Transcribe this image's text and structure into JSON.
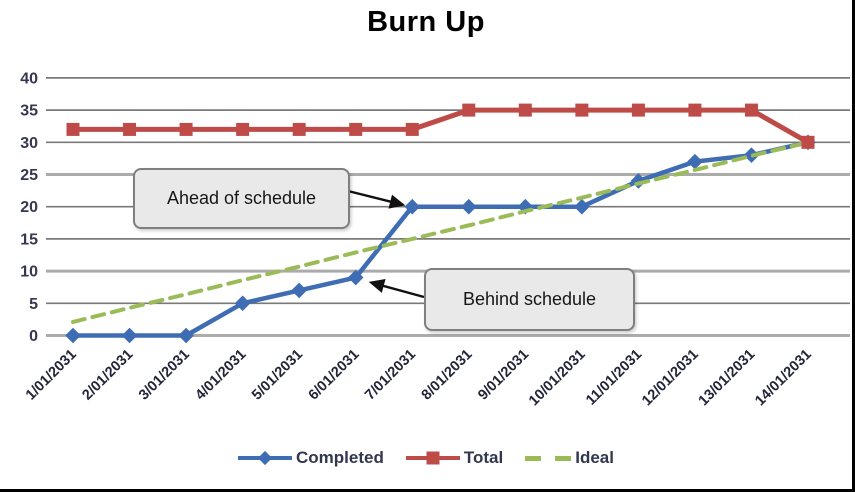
{
  "chart_data": {
    "type": "line",
    "title": "Burn Up",
    "categories": [
      "1/01/2031",
      "2/01/2031",
      "3/01/2031",
      "4/01/2031",
      "5/01/2031",
      "6/01/2031",
      "7/01/2031",
      "8/01/2031",
      "9/01/2031",
      "10/01/2031",
      "11/01/2031",
      "12/01/2031",
      "13/01/2031",
      "14/01/2031"
    ],
    "series": [
      {
        "name": "Completed",
        "color": "#3E6DB3",
        "marker": "diamond",
        "line_style": "solid",
        "values": [
          0,
          0,
          0,
          5,
          7,
          9,
          20,
          20,
          20,
          20,
          24,
          27,
          28,
          30
        ]
      },
      {
        "name": "Total",
        "color": "#BE4B48",
        "marker": "square",
        "line_style": "solid",
        "values": [
          32,
          32,
          32,
          32,
          32,
          32,
          32,
          35,
          35,
          35,
          35,
          35,
          35,
          30
        ]
      },
      {
        "name": "Ideal",
        "color": "#9BBB59",
        "marker": "none",
        "line_style": "dashed",
        "values": [
          2.1,
          4.3,
          6.4,
          8.6,
          10.7,
          12.9,
          15,
          17.1,
          19.3,
          21.4,
          23.6,
          25.7,
          27.9,
          30
        ]
      }
    ],
    "ylim": [
      0,
      40
    ],
    "yticks": [
      0,
      5,
      10,
      15,
      20,
      25,
      30,
      35,
      40
    ],
    "xlabel": "",
    "ylabel": "",
    "grid": "horizontal",
    "legend_position": "bottom",
    "annotations": [
      {
        "text": "Ahead of schedule",
        "points_to": {
          "category": "7/01/2031",
          "value": 20
        }
      },
      {
        "text": "Behind schedule",
        "points_to": {
          "category": "6/01/2031",
          "value": 9
        }
      }
    ]
  }
}
